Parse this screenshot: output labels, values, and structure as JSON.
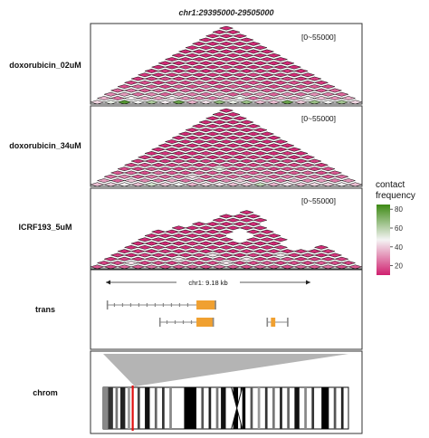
{
  "title": "chr1:29395000-29505000",
  "colors": {
    "low": "#d0206f",
    "mid": "#f4f4f4",
    "high": "#3d8a14"
  },
  "legend": {
    "title_line1": "contact",
    "title_line2": "frequency",
    "ticks": [
      "80",
      "60",
      "40",
      "20"
    ],
    "range": [
      10,
      85
    ]
  },
  "tracks": [
    {
      "label": "doxorubicin_02uM",
      "range_label": "[0~55000]",
      "rows": [
        [
          42,
          50,
          80,
          48,
          62,
          46,
          76,
          36,
          44,
          68,
          50,
          66,
          38,
          38,
          76,
          40,
          66,
          48,
          64,
          42
        ],
        [
          36,
          24,
          46,
          34,
          32,
          44,
          30,
          28,
          26,
          34,
          48,
          24,
          28,
          36,
          32,
          46,
          38,
          30,
          34
        ],
        [
          28,
          32,
          24,
          28,
          22,
          30,
          26,
          24,
          30,
          20,
          26,
          30,
          22,
          28,
          24,
          30,
          26,
          22
        ],
        [
          22,
          26,
          20,
          24,
          18,
          22,
          20,
          24,
          18,
          22,
          26,
          20,
          22,
          18,
          24,
          20,
          22
        ],
        [
          18,
          22,
          20,
          16,
          20,
          18,
          22,
          16,
          20,
          18,
          22,
          16,
          20,
          18,
          20,
          18
        ],
        [
          16,
          18,
          14,
          18,
          16,
          20,
          14,
          18,
          16,
          18,
          14,
          16,
          18,
          16,
          14
        ],
        [
          14,
          16,
          18,
          14,
          16,
          14,
          16,
          18,
          14,
          16,
          14,
          16,
          14,
          16
        ],
        [
          14,
          12,
          14,
          16,
          12,
          14,
          12,
          14,
          16,
          12,
          14,
          12,
          14
        ],
        [
          12,
          14,
          12,
          14,
          12,
          14,
          12,
          12,
          14,
          12,
          14,
          12
        ],
        [
          12,
          12,
          14,
          12,
          12,
          14,
          12,
          12,
          14,
          12,
          12
        ],
        [
          12,
          12,
          12,
          12,
          12,
          12,
          12,
          12,
          12,
          12
        ],
        [
          12,
          12,
          12,
          12,
          12,
          12,
          12,
          12,
          12
        ],
        [
          12,
          12,
          12,
          12,
          12,
          12,
          12,
          12
        ],
        [
          12,
          12,
          12,
          12,
          12,
          12,
          12
        ],
        [
          12,
          12,
          12,
          12,
          12,
          12
        ],
        [
          12,
          12,
          12,
          12,
          12
        ],
        [
          12,
          12,
          12,
          12
        ],
        [
          12,
          12,
          12
        ],
        [
          12,
          12
        ],
        [
          12
        ]
      ]
    },
    {
      "label": "doxorubicin_34uM",
      "range_label": "[0~55000]",
      "rows": [
        [
          38,
          40,
          46,
          38,
          54,
          40,
          48,
          36,
          42,
          44,
          38,
          40,
          58,
          36,
          44,
          38,
          42,
          40,
          46,
          38
        ],
        [
          32,
          22,
          38,
          28,
          26,
          34,
          24,
          30,
          22,
          28,
          40,
          26,
          30,
          24,
          34,
          28,
          32,
          26,
          30
        ],
        [
          24,
          28,
          20,
          26,
          22,
          24,
          42,
          20,
          26,
          22,
          24,
          28,
          20,
          26,
          22,
          24,
          20,
          24
        ],
        [
          20,
          22,
          18,
          24,
          20,
          18,
          22,
          20,
          18,
          24,
          20,
          22,
          18,
          20,
          22,
          18,
          20
        ],
        [
          18,
          16,
          20,
          18,
          16,
          20,
          18,
          52,
          16,
          18,
          20,
          16,
          18,
          20,
          16,
          18
        ],
        [
          16,
          18,
          14,
          16,
          18,
          14,
          16,
          18,
          14,
          16,
          18,
          14,
          16,
          18,
          14
        ],
        [
          14,
          16,
          14,
          16,
          14,
          16,
          14,
          16,
          14,
          16,
          14,
          16,
          14,
          16
        ],
        [
          14,
          12,
          14,
          12,
          14,
          12,
          14,
          12,
          14,
          12,
          14,
          12,
          14
        ],
        [
          12,
          14,
          12,
          12,
          14,
          12,
          12,
          14,
          12,
          12,
          14,
          12
        ],
        [
          12,
          12,
          14,
          12,
          12,
          12,
          14,
          12,
          12,
          12,
          12
        ],
        [
          12,
          12,
          12,
          12,
          12,
          12,
          12,
          12,
          12,
          12
        ],
        [
          12,
          12,
          12,
          12,
          12,
          12,
          12,
          12,
          12
        ],
        [
          12,
          12,
          12,
          12,
          12,
          12,
          12,
          12
        ],
        [
          12,
          12,
          12,
          12,
          12,
          12,
          12
        ],
        [
          12,
          12,
          12,
          12,
          12,
          12
        ],
        [
          12,
          12,
          12,
          12,
          12
        ],
        [
          12,
          12,
          12,
          12
        ],
        [
          12,
          12,
          12
        ],
        [
          12,
          12
        ],
        [
          12
        ]
      ]
    },
    {
      "label": "ICRF193_5uM",
      "range_label": "[0~55000]",
      "rows": [
        [
          20,
          18,
          22,
          20,
          24,
          18,
          20,
          22,
          18,
          24,
          20,
          18,
          22,
          20,
          18,
          22,
          20,
          24,
          18,
          20
        ],
        [
          16,
          18,
          44,
          16,
          18,
          16,
          20,
          16,
          18,
          44,
          16,
          18,
          20,
          16,
          18,
          16,
          20,
          18,
          16
        ],
        [
          14,
          16,
          14,
          18,
          14,
          44,
          16,
          14,
          18,
          16,
          44,
          14,
          16,
          18,
          14,
          16,
          14,
          16
        ],
        [
          14,
          12,
          16,
          14,
          12,
          14,
          16,
          44,
          14,
          12,
          16,
          14,
          44,
          14,
          16,
          12,
          14
        ],
        [
          12,
          14,
          12,
          14,
          12,
          14,
          12,
          14,
          12,
          14,
          12,
          14,
          12,
          14,
          12,
          14
        ],
        [
          12,
          12,
          14,
          12,
          12,
          14,
          12,
          12,
          14,
          12,
          12,
          14,
          12,
          12,
          12
        ],
        [
          12,
          12,
          12,
          12,
          14,
          12,
          12,
          12,
          14,
          12,
          12,
          12,
          12,
          12
        ],
        [
          12,
          12,
          12,
          12,
          12,
          12,
          12,
          12,
          12,
          12,
          12,
          12,
          12
        ],
        [
          12,
          12,
          12,
          12,
          12,
          12,
          12,
          12,
          12,
          12,
          12,
          12
        ],
        [
          12,
          12,
          12,
          12,
          12,
          12,
          12,
          12,
          12,
          12,
          12
        ],
        [
          12,
          12,
          12,
          12,
          12,
          12,
          12,
          12,
          12,
          12
        ],
        [
          12,
          12,
          12,
          12,
          12,
          12,
          12,
          12,
          12
        ],
        [
          12,
          12,
          12,
          12,
          12,
          12,
          12,
          12
        ],
        [
          12,
          12,
          12,
          12,
          12,
          12,
          12
        ],
        [
          12,
          12,
          12,
          12,
          12,
          12
        ],
        [
          12,
          12,
          12,
          12,
          12
        ],
        [
          12,
          12,
          12,
          12
        ],
        [
          12,
          12,
          12
        ],
        [
          12,
          12
        ],
        [
          12
        ]
      ],
      "present": [
        [
          1,
          1,
          1,
          1,
          1,
          1,
          1,
          1,
          1,
          1,
          1,
          1,
          1,
          1,
          1,
          1,
          1,
          1,
          1,
          1
        ],
        [
          1,
          1,
          1,
          1,
          1,
          1,
          1,
          1,
          1,
          1,
          1,
          1,
          1,
          1,
          1,
          1,
          1,
          1,
          1
        ],
        [
          1,
          1,
          1,
          1,
          1,
          1,
          1,
          1,
          1,
          1,
          1,
          1,
          1,
          1,
          1,
          1,
          1,
          1
        ],
        [
          1,
          1,
          1,
          1,
          1,
          1,
          1,
          1,
          1,
          1,
          1,
          1,
          1,
          1,
          1,
          1,
          1
        ],
        [
          1,
          1,
          1,
          1,
          1,
          1,
          1,
          1,
          1,
          1,
          1,
          1,
          1,
          1,
          1,
          1
        ],
        [
          1,
          1,
          1,
          1,
          1,
          1,
          1,
          1,
          1,
          1,
          1,
          1,
          0,
          0,
          1
        ],
        [
          1,
          1,
          1,
          1,
          1,
          1,
          1,
          1,
          1,
          1,
          1,
          0,
          0,
          0
        ],
        [
          1,
          1,
          1,
          1,
          1,
          1,
          1,
          0,
          1,
          1,
          1,
          0,
          0
        ],
        [
          1,
          1,
          1,
          1,
          1,
          1,
          0,
          0,
          1,
          1,
          0,
          0
        ],
        [
          1,
          1,
          1,
          1,
          1,
          1,
          0,
          1,
          1,
          0,
          0
        ],
        [
          0,
          1,
          1,
          1,
          1,
          1,
          1,
          1,
          0,
          0
        ],
        [
          0,
          0,
          1,
          1,
          1,
          1,
          1,
          0,
          0
        ],
        [
          0,
          0,
          0,
          1,
          1,
          1,
          1,
          0
        ],
        [
          0,
          0,
          0,
          1,
          1,
          1,
          0
        ],
        [
          0,
          0,
          0,
          0,
          1,
          0
        ],
        [
          0,
          0,
          0,
          0,
          0
        ],
        [
          0,
          0,
          0,
          0
        ],
        [
          0,
          0,
          0
        ],
        [
          0,
          0
        ],
        [
          0
        ]
      ]
    }
  ],
  "trans": {
    "label": "trans",
    "scale_text": "chr1: 9.18 kb",
    "genes": [
      {
        "start": 0.02,
        "end": 0.52,
        "thick_start": 0.43,
        "thick_end": 0.52,
        "row": 0
      },
      {
        "start": 0.26,
        "end": 0.51,
        "thick_start": 0.43,
        "thick_end": 0.51,
        "row": 1
      },
      {
        "start": 0.75,
        "end": 0.85,
        "thick_start": 0.77,
        "thick_end": 0.79,
        "row": 1
      }
    ]
  },
  "chrom": {
    "label": "chrom",
    "highlight": 0.12,
    "bands": [
      {
        "a": 0.0,
        "b": 0.02,
        "c": "#888888"
      },
      {
        "a": 0.02,
        "b": 0.04,
        "c": "#333333"
      },
      {
        "a": 0.05,
        "b": 0.06,
        "c": "#777777"
      },
      {
        "a": 0.07,
        "b": 0.09,
        "c": "#222222"
      },
      {
        "a": 0.1,
        "b": 0.11,
        "c": "#999999"
      },
      {
        "a": 0.14,
        "b": 0.15,
        "c": "#444444"
      },
      {
        "a": 0.17,
        "b": 0.19,
        "c": "#111111"
      },
      {
        "a": 0.21,
        "b": 0.22,
        "c": "#666666"
      },
      {
        "a": 0.24,
        "b": 0.25,
        "c": "#333333"
      },
      {
        "a": 0.27,
        "b": 0.28,
        "c": "#888888"
      },
      {
        "a": 0.33,
        "b": 0.38,
        "c": "#000000"
      },
      {
        "a": 0.4,
        "b": 0.41,
        "c": "#555555"
      },
      {
        "a": 0.43,
        "b": 0.44,
        "c": "#222222"
      },
      {
        "a": 0.46,
        "b": 0.47,
        "c": "#777777"
      },
      {
        "a": 0.48,
        "b": 0.5,
        "c": "#111111"
      },
      {
        "a": 0.53,
        "b": 0.55,
        "c": "#000000"
      },
      {
        "a": 0.56,
        "b": 0.58,
        "c": "#000000"
      },
      {
        "a": 0.6,
        "b": 0.61,
        "c": "#555555"
      },
      {
        "a": 0.63,
        "b": 0.64,
        "c": "#999999"
      },
      {
        "a": 0.66,
        "b": 0.67,
        "c": "#333333"
      },
      {
        "a": 0.69,
        "b": 0.7,
        "c": "#777777"
      },
      {
        "a": 0.72,
        "b": 0.73,
        "c": "#222222"
      },
      {
        "a": 0.75,
        "b": 0.76,
        "c": "#666666"
      },
      {
        "a": 0.78,
        "b": 0.8,
        "c": "#111111"
      },
      {
        "a": 0.82,
        "b": 0.83,
        "c": "#888888"
      },
      {
        "a": 0.85,
        "b": 0.86,
        "c": "#333333"
      },
      {
        "a": 0.89,
        "b": 0.92,
        "c": "#000000"
      },
      {
        "a": 0.94,
        "b": 0.95,
        "c": "#555555"
      },
      {
        "a": 0.97,
        "b": 0.98,
        "c": "#222222"
      }
    ]
  }
}
